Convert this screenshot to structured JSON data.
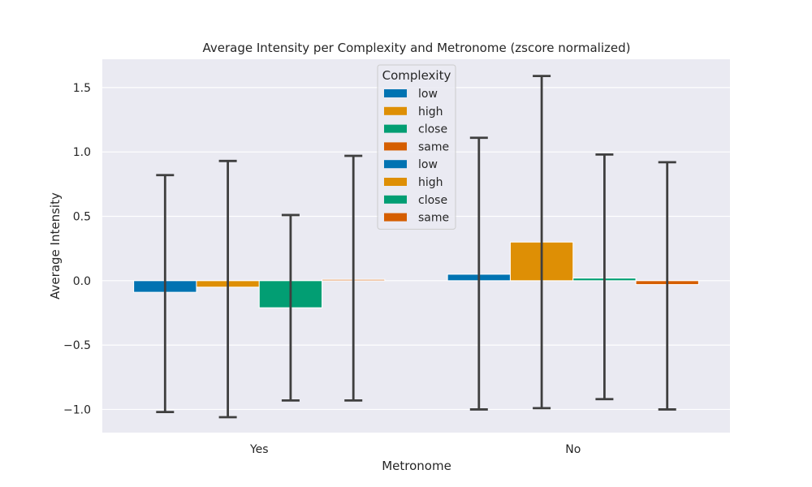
{
  "chart_data": {
    "type": "bar",
    "title": "Average Intensity per Complexity and Metronome (zscore normalized)",
    "xlabel": "Metronome",
    "ylabel": "Average Intensity",
    "categories": [
      "Yes",
      "No"
    ],
    "ylim": [
      -1.18,
      1.72
    ],
    "yticks": [
      -1.0,
      -0.5,
      0.0,
      0.5,
      1.0,
      1.5
    ],
    "ytick_labels": [
      "−1.0",
      "−0.5",
      "0.0",
      "0.5",
      "1.0",
      "1.5"
    ],
    "grid": true,
    "series": [
      {
        "name": "low",
        "color": "#0173b2",
        "values": [
          -0.09,
          0.05
        ],
        "err_low": [
          -1.02,
          -1.0
        ],
        "err_high": [
          0.82,
          1.11
        ]
      },
      {
        "name": "high",
        "color": "#de8f05",
        "values": [
          -0.05,
          0.3
        ],
        "err_low": [
          -1.06,
          -0.99
        ],
        "err_high": [
          0.93,
          1.59
        ]
      },
      {
        "name": "close",
        "color": "#029e73",
        "values": [
          -0.21,
          0.02
        ],
        "err_low": [
          -0.93,
          -0.92
        ],
        "err_high": [
          0.51,
          0.98
        ]
      },
      {
        "name": "same",
        "color": "#d55e00",
        "values": [
          0.01,
          -0.03
        ],
        "err_low": [
          -0.93,
          -1.0
        ],
        "err_high": [
          0.97,
          0.92
        ]
      }
    ],
    "legend": {
      "title": "Complexity",
      "placement": "top-center",
      "entries": [
        {
          "label": "low",
          "color": "#0173b2"
        },
        {
          "label": "high",
          "color": "#de8f05"
        },
        {
          "label": "close",
          "color": "#029e73"
        },
        {
          "label": "same",
          "color": "#d55e00"
        },
        {
          "label": "low",
          "color": "#0173b2"
        },
        {
          "label": "high",
          "color": "#de8f05"
        },
        {
          "label": "close",
          "color": "#029e73"
        },
        {
          "label": "same",
          "color": "#d55e00"
        }
      ]
    }
  }
}
